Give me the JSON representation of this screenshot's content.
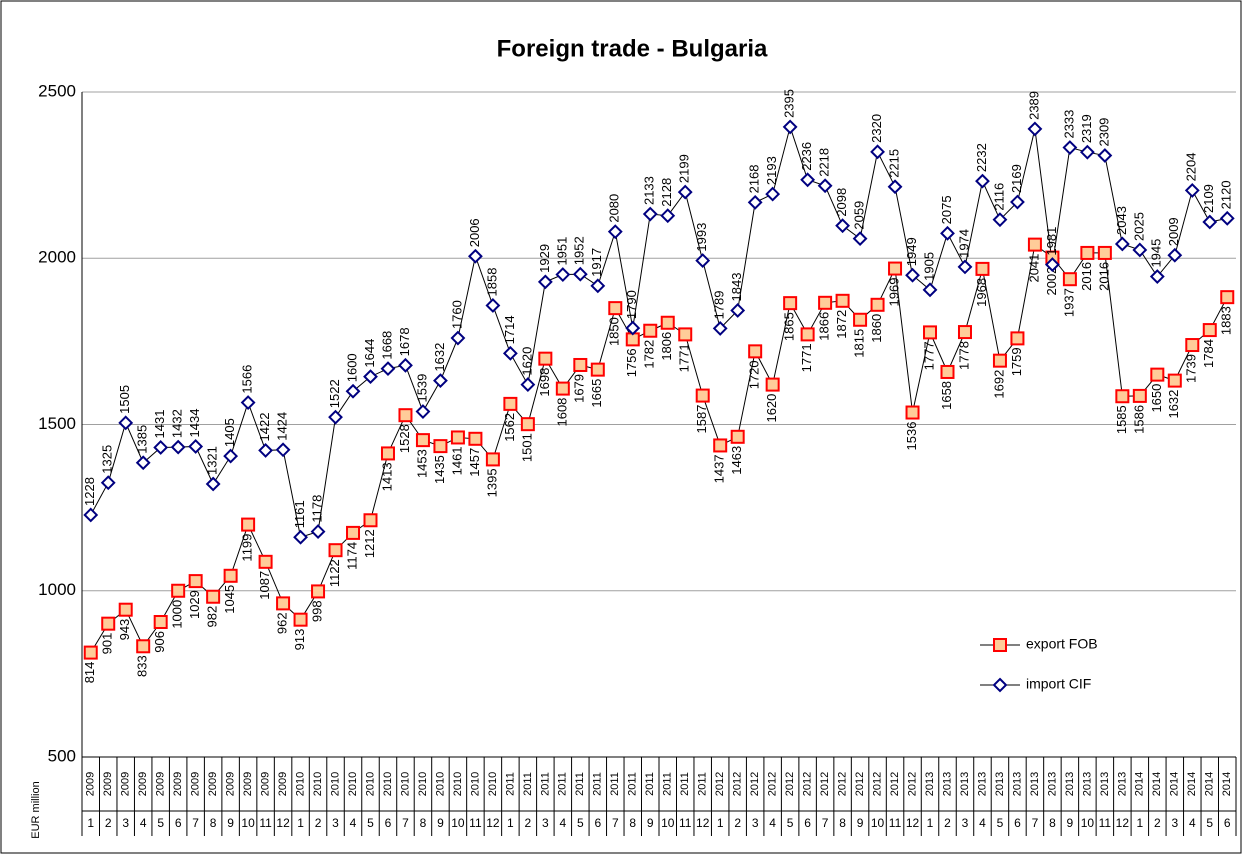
{
  "chart_data": {
    "type": "line",
    "title": "Foreign trade - Bulgaria",
    "y_label": "EUR million",
    "years": [
      "2009",
      "2009",
      "2009",
      "2009",
      "2009",
      "2009",
      "2009",
      "2009",
      "2009",
      "2009",
      "2009",
      "2009",
      "2010",
      "2010",
      "2010",
      "2010",
      "2010",
      "2010",
      "2010",
      "2010",
      "2010",
      "2010",
      "2010",
      "2010",
      "2011",
      "2011",
      "2011",
      "2011",
      "2011",
      "2011",
      "2011",
      "2011",
      "2011",
      "2011",
      "2011",
      "2011",
      "2012",
      "2012",
      "2012",
      "2012",
      "2012",
      "2012",
      "2012",
      "2012",
      "2012",
      "2012",
      "2012",
      "2012",
      "2013",
      "2013",
      "2013",
      "2013",
      "2013",
      "2013",
      "2013",
      "2013",
      "2013",
      "2013",
      "2013",
      "2013",
      "2014",
      "2014",
      "2014",
      "2014",
      "2014",
      "2014"
    ],
    "categories": [
      "1",
      "2",
      "3",
      "4",
      "5",
      "6",
      "7",
      "8",
      "9",
      "10",
      "11",
      "12",
      "1",
      "2",
      "3",
      "4",
      "5",
      "6",
      "7",
      "8",
      "9",
      "10",
      "11",
      "12",
      "1",
      "2",
      "3",
      "4",
      "5",
      "6",
      "7",
      "8",
      "9",
      "10",
      "11",
      "12",
      "1",
      "2",
      "3",
      "4",
      "5",
      "6",
      "7",
      "8",
      "9",
      "10",
      "11",
      "12",
      "1",
      "2",
      "3",
      "4",
      "5",
      "6",
      "7",
      "8",
      "9",
      "10",
      "11",
      "12",
      "1",
      "2",
      "3",
      "4",
      "5",
      "6"
    ],
    "series": [
      {
        "name": "export FOB",
        "color": "#ff0000",
        "fill": "#ffcc99",
        "marker": "square",
        "values": [
          814,
          901,
          943,
          833,
          906,
          1000,
          1029,
          982,
          1045,
          1199,
          1087,
          962,
          913,
          998,
          1122,
          1174,
          1212,
          1413,
          1528,
          1453,
          1435,
          1461,
          1457,
          1395,
          1562,
          1501,
          1698,
          1608,
          1679,
          1665,
          1850,
          1756,
          1782,
          1806,
          1771,
          1587,
          1437,
          1463,
          1720,
          1620,
          1865,
          1771,
          1866,
          1872,
          1815,
          1860,
          1969,
          1536,
          1777,
          1658,
          1778,
          1968,
          1692,
          1759,
          2041,
          2002,
          1937,
          2016,
          2016,
          1585,
          1586,
          1650,
          1632,
          1739,
          1784,
          1883
        ]
      },
      {
        "name": "import CIF",
        "color": "#000080",
        "fill": "#ffffff",
        "marker": "diamond",
        "values": [
          1228,
          1325,
          1505,
          1385,
          1431,
          1432,
          1434,
          1321,
          1405,
          1566,
          1422,
          1424,
          1161,
          1178,
          1522,
          1600,
          1644,
          1668,
          1678,
          1539,
          1632,
          1760,
          2006,
          1858,
          1714,
          1620,
          1929,
          1951,
          1952,
          1917,
          2080,
          1790,
          2133,
          2128,
          2199,
          1993,
          1789,
          1843,
          2168,
          2193,
          2395,
          2236,
          2218,
          2098,
          2059,
          2320,
          2215,
          1949,
          1905,
          2075,
          1974,
          2232,
          2116,
          2169,
          2389,
          1981,
          2333,
          2319,
          2309,
          2043,
          2025,
          1945,
          2009,
          2204,
          2109,
          2120
        ]
      }
    ],
    "ylim": [
      500,
      2500
    ],
    "yticks": [
      500,
      1000,
      1500,
      2000,
      2500
    ],
    "grid": true,
    "legend": "lower right"
  }
}
